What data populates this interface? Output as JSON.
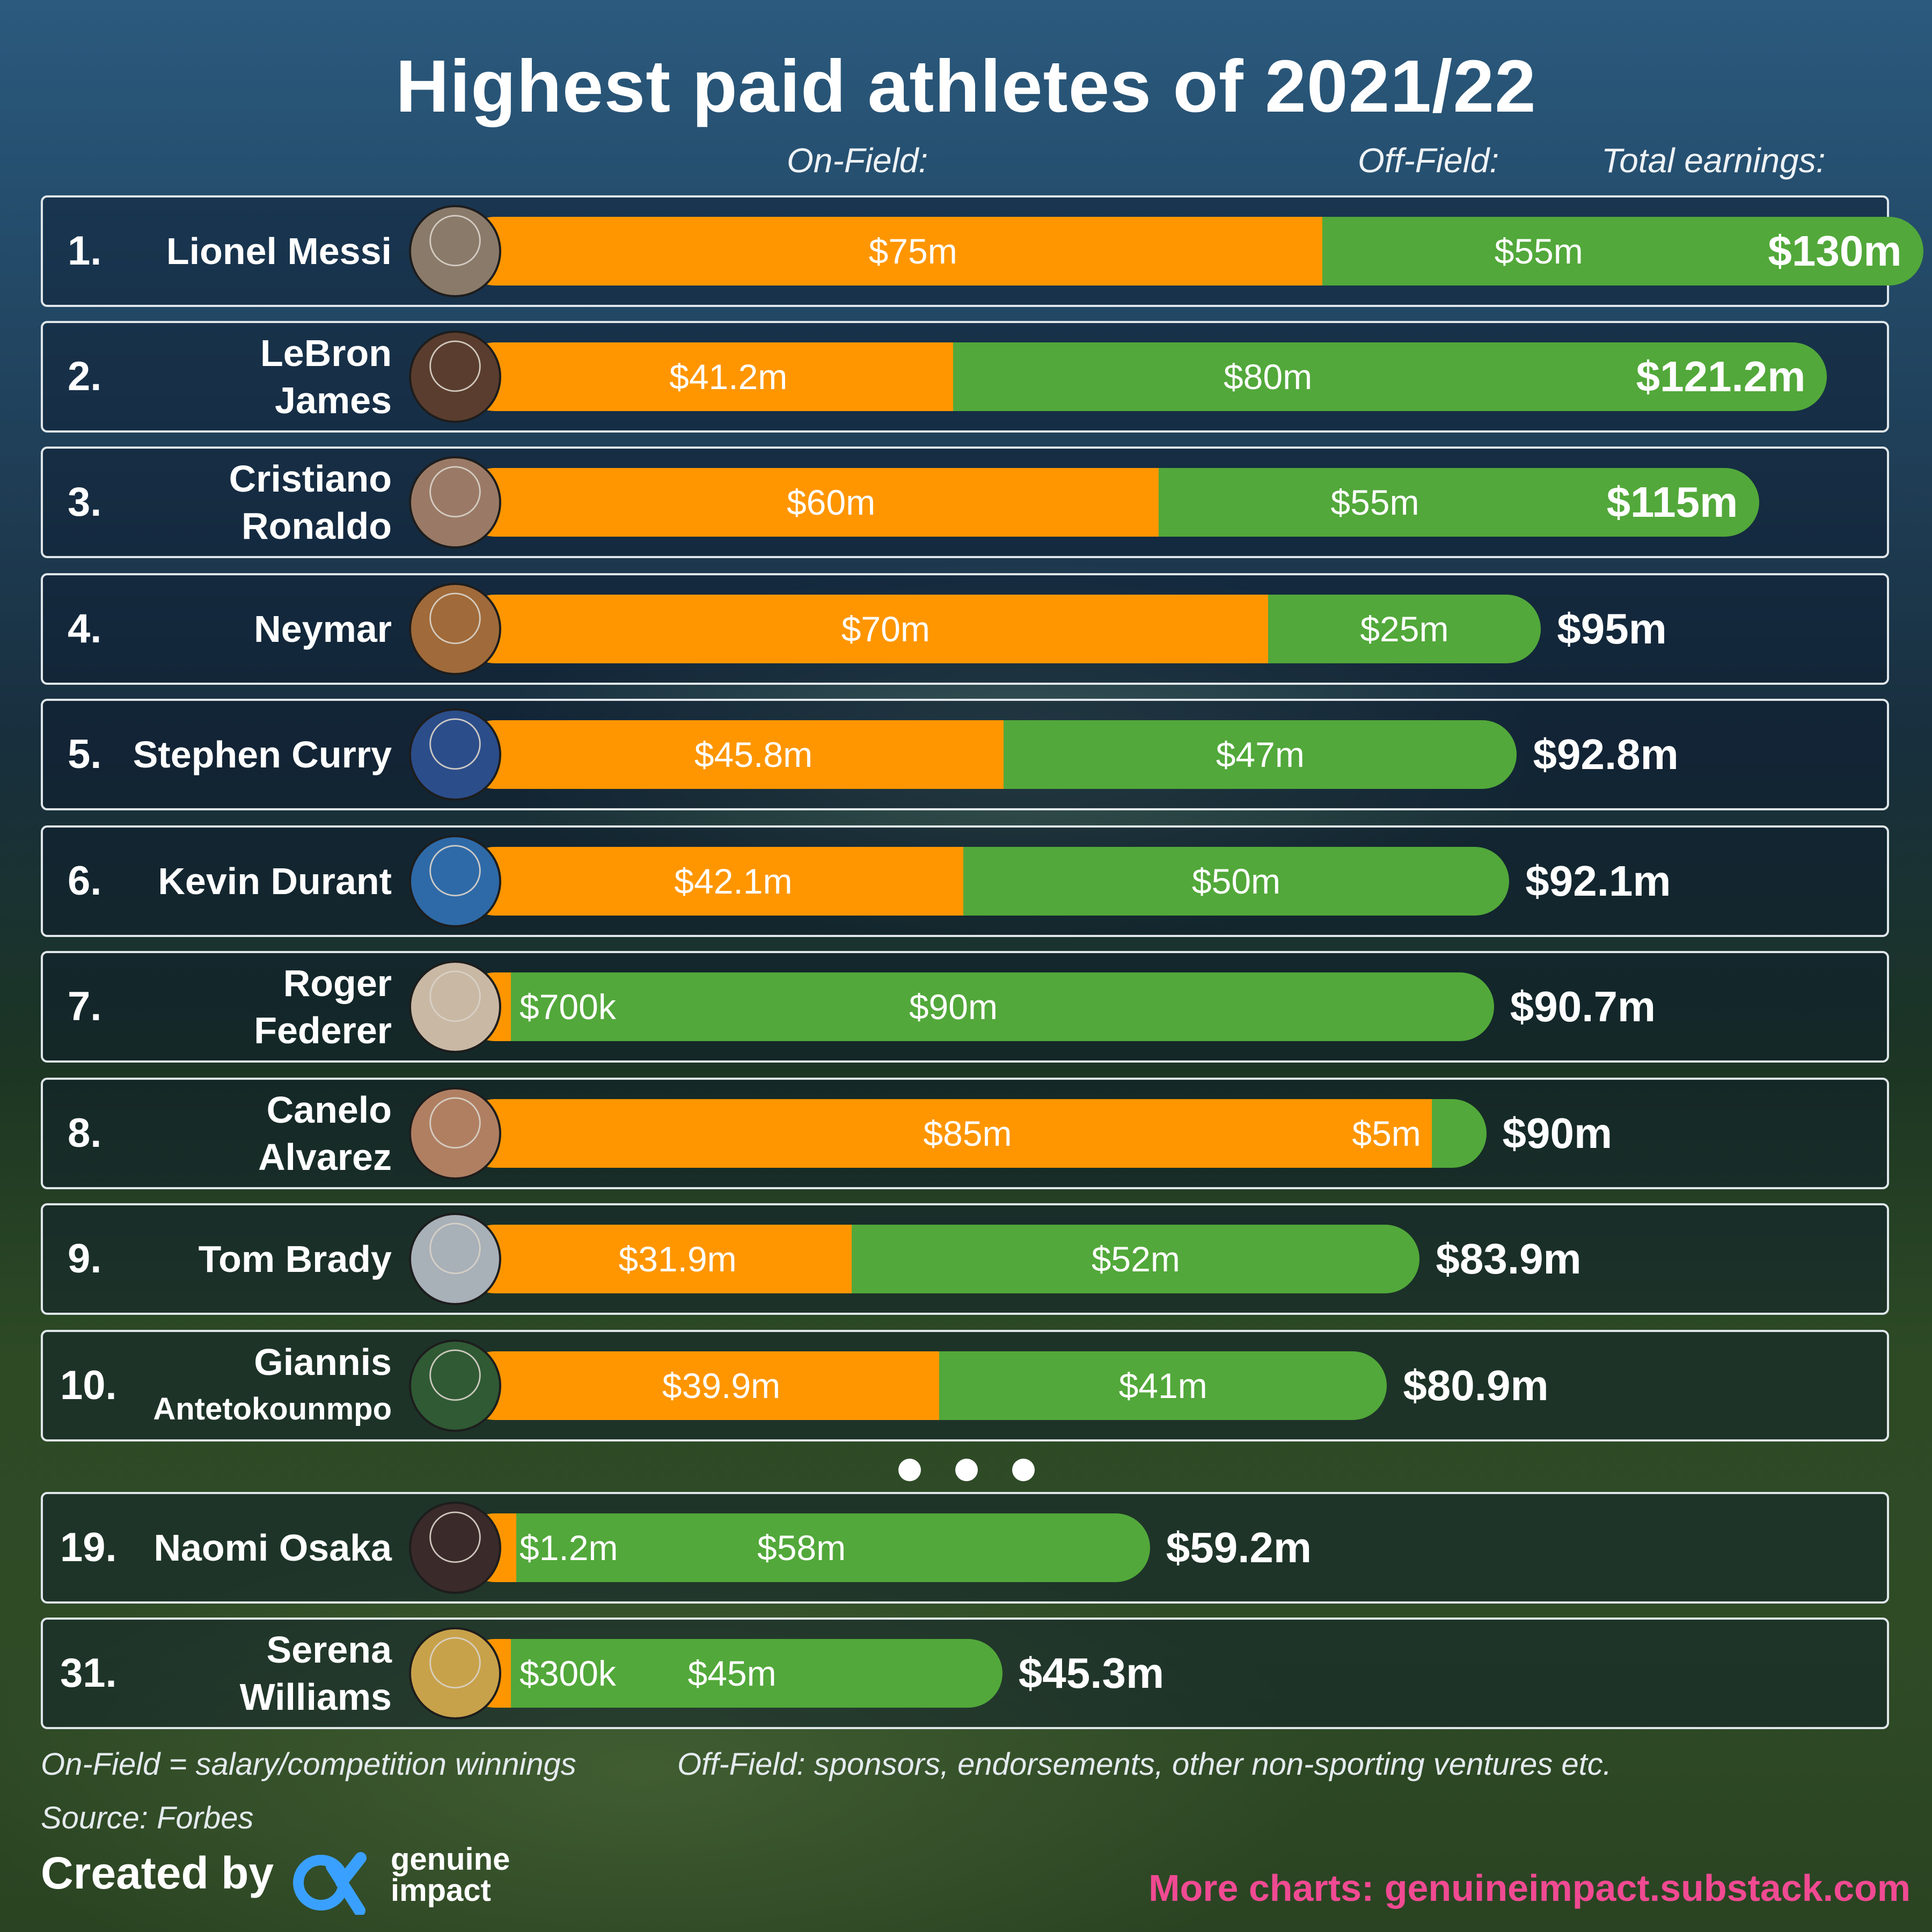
{
  "title": "Highest paid athletes of 2021/22",
  "headers": {
    "on_field": "On-Field:",
    "off_field": "Off-Field:",
    "total": "Total earnings:"
  },
  "colors": {
    "on_field": "#ff9600",
    "off_field": "#52a83a",
    "link": "#f04a92"
  },
  "chart_data": {
    "type": "bar",
    "orientation": "horizontal",
    "stacked": true,
    "unit": "$m",
    "series": [
      {
        "name": "On-Field",
        "values": [
          75,
          41.2,
          60,
          70,
          45.8,
          42.1,
          0.7,
          85,
          31.9,
          39.9,
          1.2,
          0.3
        ]
      },
      {
        "name": "Off-Field",
        "values": [
          55,
          80,
          55,
          25,
          47,
          50,
          90,
          5,
          52,
          41,
          58,
          45
        ]
      }
    ],
    "athletes": [
      {
        "rank": "1.",
        "name1": "Lionel Messi",
        "name2": "",
        "on": 75,
        "off": 55,
        "on_label": "$75m",
        "off_label": "$55m",
        "total": 130,
        "total_label": "$130m",
        "avatar_color": "#8a7a6a"
      },
      {
        "rank": "2.",
        "name1": "LeBron",
        "name2": "James",
        "on": 41.2,
        "off": 80,
        "on_label": "$41.2m",
        "off_label": "$80m",
        "total": 121.2,
        "total_label": "$121.2m",
        "avatar_color": "#5a3d2e"
      },
      {
        "rank": "3.",
        "name1": "Cristiano",
        "name2": "Ronaldo",
        "on": 60,
        "off": 55,
        "on_label": "$60m",
        "off_label": "$55m",
        "total": 115,
        "total_label": "$115m",
        "avatar_color": "#9a7a66"
      },
      {
        "rank": "4.",
        "name1": "Neymar",
        "name2": "",
        "on": 70,
        "off": 25,
        "on_label": "$70m",
        "off_label": "$25m",
        "total": 95,
        "total_label": "$95m",
        "avatar_color": "#a06a3a"
      },
      {
        "rank": "5.",
        "name1": "Stephen Curry",
        "name2": "",
        "on": 45.8,
        "off": 47,
        "on_label": "$45.8m",
        "off_label": "$47m",
        "total": 92.8,
        "total_label": "$92.8m",
        "avatar_color": "#2b4d8a"
      },
      {
        "rank": "6.",
        "name1": "Kevin Durant",
        "name2": "",
        "on": 42.1,
        "off": 50,
        "on_label": "$42.1m",
        "off_label": "$50m",
        "total": 92.1,
        "total_label": "$92.1m",
        "avatar_color": "#2e6aa8"
      },
      {
        "rank": "7.",
        "name1": "Roger",
        "name2": "Federer",
        "on": 0.7,
        "off": 90,
        "on_label": "$700k",
        "off_label": "$90m",
        "total": 90.7,
        "total_label": "$90.7m",
        "avatar_color": "#c9b8a4"
      },
      {
        "rank": "8.",
        "name1": "Canelo",
        "name2": "Alvarez",
        "on": 85,
        "off": 5,
        "on_label": "$85m",
        "off_label": "$5m",
        "total": 90,
        "total_label": "$90m",
        "avatar_color": "#b07f62"
      },
      {
        "rank": "9.",
        "name1": "Tom Brady",
        "name2": "",
        "on": 31.9,
        "off": 52,
        "on_label": "$31.9m",
        "off_label": "$52m",
        "total": 83.9,
        "total_label": "$83.9m",
        "avatar_color": "#a8b0b8"
      },
      {
        "rank": "10.",
        "name1": "Giannis",
        "name2": "Antetokounmpo",
        "on": 39.9,
        "off": 41,
        "on_label": "$39.9m",
        "off_label": "$41m",
        "total": 80.9,
        "total_label": "$80.9m",
        "avatar_color": "#2f5a34"
      },
      {
        "rank": "19.",
        "name1": "Naomi Osaka",
        "name2": "",
        "on": 1.2,
        "off": 58,
        "on_label": "$1.2m",
        "off_label": "$58m",
        "total": 59.2,
        "total_label": "$59.2m",
        "avatar_color": "#3a2a2a"
      },
      {
        "rank": "31.",
        "name1": "Serena",
        "name2": "Williams",
        "on": 0.3,
        "off": 45,
        "on_label": "$300k",
        "off_label": "$45m",
        "total": 45.3,
        "total_label": "$45.3m",
        "avatar_color": "#c8a24a"
      }
    ]
  },
  "footnotes": {
    "on_field_def": "On-Field = salary/competition winnings",
    "off_field_def": "Off-Field: sponsors, endorsements, other non-sporting ventures etc.",
    "source": "Source: Forbes"
  },
  "credit": {
    "created_by": "Created by",
    "brand_line1": "genuine",
    "brand_line2": "impact",
    "brand_icon": "genuine-impact-logo"
  },
  "more_charts": "More charts: genuineimpact.substack.com"
}
